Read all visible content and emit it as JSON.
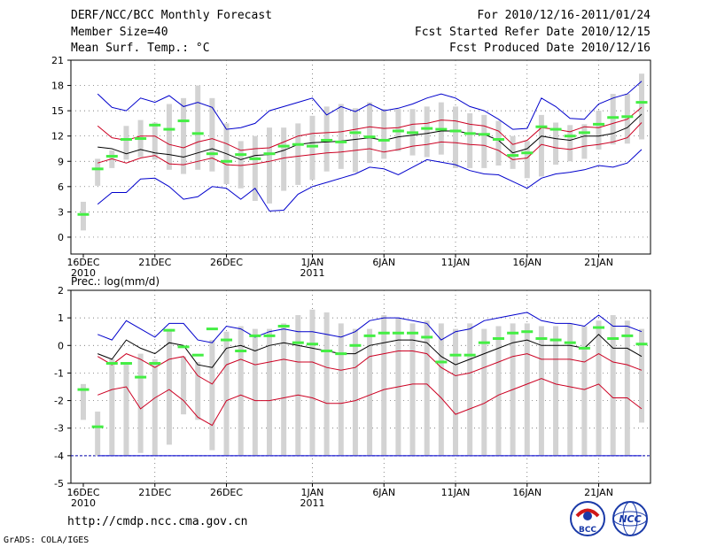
{
  "header": {
    "title": "DERF/NCC/BCC Monthly Forecast",
    "member_size": "Member Size=40",
    "variable": "Mean Surf. Temp.: °C",
    "period": "For 2010/12/16-2011/01/24",
    "started": "Fcst Started Refer Date 2010/12/15",
    "produced": "Fcst Produced Date 2010/12/16"
  },
  "footer": {
    "url": "http://cmdp.ncc.cma.gov.cn",
    "credit": "GrADS: COLA/IGES",
    "logo_bcc": "BCC",
    "logo_ncc": "NCC"
  },
  "colors": {
    "box": "#d3d3d3",
    "median": "#44ee44",
    "outer": "#0000cc",
    "inner": "#cc0022",
    "mean": "#000000"
  },
  "chart_data": [
    {
      "type": "box",
      "title": "Mean Surf. Temp.: °C",
      "ylim": [
        -2,
        21
      ],
      "yticks": [
        0,
        3,
        6,
        9,
        12,
        15,
        18,
        21
      ],
      "xtick_labels": [
        "16DEC",
        "21DEC",
        "26DEC",
        "1JAN",
        "6JAN",
        "11JAN",
        "16JAN",
        "21JAN"
      ],
      "xtick_years": [
        "2010",
        "",
        "",
        "2011",
        "",
        "",
        "",
        ""
      ],
      "xtick_days": [
        0,
        5,
        10,
        16,
        21,
        26,
        31,
        36
      ],
      "days": 40,
      "box_low": [
        0.8,
        6.1,
        8.2,
        9.2,
        9.5,
        9.2,
        8.0,
        7.5,
        8.0,
        7.8,
        6.3,
        5.8,
        4.3,
        4.0,
        5.5,
        6.2,
        6.8,
        7.8,
        8.1,
        7.7,
        8.8,
        9.3,
        10.2,
        9.7,
        9.5,
        9.8,
        8.2,
        8.2,
        8.2,
        8.5,
        8.1,
        7.0,
        7.2,
        8.6,
        9.0,
        9.3,
        10.4,
        11.0,
        11.1,
        11.6
      ],
      "box_high": [
        4.2,
        9.3,
        10.3,
        13.2,
        13.9,
        13.6,
        15.8,
        16.5,
        18.0,
        16.5,
        13.5,
        11.4,
        12.0,
        13.0,
        13.0,
        13.5,
        14.4,
        15.5,
        15.8,
        15.3,
        16.0,
        15.2,
        15.2,
        15.2,
        15.5,
        16.0,
        15.5,
        14.7,
        14.5,
        13.8,
        12.0,
        11.4,
        14.5,
        13.6,
        13.3,
        13.4,
        15.0,
        17.0,
        17.0,
        19.4
      ],
      "median": [
        2.7,
        8.1,
        9.6,
        11.6,
        11.7,
        13.3,
        12.8,
        13.8,
        12.3,
        9.9,
        9.0,
        9.8,
        9.3,
        9.9,
        10.8,
        11.0,
        10.8,
        11.5,
        11.3,
        12.4,
        11.9,
        11.5,
        12.6,
        12.4,
        12.9,
        12.8,
        12.6,
        12.3,
        12.2,
        11.6,
        9.7,
        10.0,
        13.1,
        12.8,
        12.0,
        12.4,
        13.4,
        14.2,
        14.3,
        16.0
      ],
      "mean": [
        null,
        10.7,
        10.5,
        9.9,
        10.4,
        10.0,
        9.8,
        9.5,
        10.0,
        10.5,
        9.9,
        9.2,
        9.7,
        9.8,
        10.3,
        11.0,
        11.2,
        11.3,
        11.4,
        11.6,
        11.8,
        11.5,
        11.9,
        12.1,
        12.3,
        12.6,
        12.6,
        12.3,
        12.2,
        11.5,
        10.0,
        10.5,
        12.0,
        11.7,
        11.5,
        12.0,
        12.0,
        12.3,
        13.0,
        14.6
      ],
      "inner_upper": [
        null,
        13.2,
        11.8,
        11.5,
        12.0,
        12.0,
        11.0,
        10.6,
        11.3,
        11.7,
        11.1,
        10.3,
        10.5,
        10.6,
        11.3,
        12.0,
        12.3,
        12.4,
        12.5,
        12.8,
        13.1,
        12.9,
        13.0,
        13.4,
        13.5,
        13.9,
        13.8,
        13.4,
        13.2,
        12.6,
        11.0,
        11.5,
        13.0,
        12.8,
        12.5,
        13.1,
        13.0,
        13.5,
        14.0,
        15.4
      ],
      "inner_lower": [
        null,
        8.8,
        9.3,
        8.8,
        9.4,
        9.7,
        8.7,
        8.6,
        9.0,
        9.4,
        8.6,
        8.5,
        8.7,
        9.0,
        9.4,
        9.6,
        9.8,
        10.0,
        10.1,
        10.3,
        10.5,
        10.1,
        10.4,
        10.8,
        11.0,
        11.3,
        11.2,
        11.0,
        10.9,
        10.3,
        9.2,
        9.4,
        11.0,
        10.6,
        10.4,
        10.8,
        11.0,
        11.3,
        11.8,
        13.6
      ],
      "outer_upper": [
        null,
        17.0,
        15.4,
        15.0,
        16.5,
        16.0,
        16.8,
        15.5,
        16.0,
        15.4,
        12.8,
        13.0,
        13.5,
        15.0,
        15.5,
        16.0,
        16.5,
        14.5,
        15.5,
        14.9,
        15.8,
        15.0,
        15.3,
        15.8,
        16.5,
        17.0,
        16.5,
        15.5,
        15.0,
        14.0,
        12.8,
        12.9,
        16.5,
        15.5,
        14.1,
        14.0,
        15.8,
        16.5,
        17.0,
        18.5
      ],
      "outer_lower": [
        null,
        3.9,
        5.3,
        5.3,
        6.9,
        7.0,
        6.0,
        4.5,
        4.8,
        6.0,
        5.8,
        4.5,
        5.8,
        3.1,
        3.2,
        5.1,
        6.0,
        6.5,
        7.0,
        7.5,
        8.3,
        8.1,
        7.4,
        8.3,
        9.2,
        8.9,
        8.6,
        7.9,
        7.5,
        7.4,
        6.6,
        5.8,
        7.0,
        7.5,
        7.7,
        8.0,
        8.5,
        8.3,
        8.8,
        10.4
      ]
    },
    {
      "type": "box",
      "title": "Prec.: log(mm/d)",
      "ylim": [
        -5,
        2
      ],
      "yticks": [
        -5,
        -4,
        -3,
        -2,
        -1,
        0,
        1,
        2
      ],
      "xtick_labels": [
        "16DEC",
        "21DEC",
        "26DEC",
        "1JAN",
        "6JAN",
        "11JAN",
        "16JAN",
        "21JAN"
      ],
      "xtick_years": [
        "2010",
        "",
        "",
        "2011",
        "",
        "",
        "",
        ""
      ],
      "xtick_days": [
        0,
        5,
        10,
        16,
        21,
        26,
        31,
        36
      ],
      "days": 40,
      "baseline": -4,
      "box_low": [
        -2.7,
        -4,
        -4,
        -4,
        -3.9,
        -4,
        -3.6,
        -2.5,
        -2.7,
        -3.8,
        -4,
        -4,
        -4,
        -4,
        -4,
        -4,
        -4,
        -4,
        -4,
        -4,
        -4,
        -4,
        -4,
        -4,
        -4,
        -4,
        -4,
        -4,
        -4,
        -4,
        -4,
        -4,
        -4,
        -4,
        -4,
        -4,
        -4,
        -4,
        -4,
        -2.8
      ],
      "box_high": [
        -1.4,
        -2.4,
        -0.5,
        -0.7,
        -0.3,
        -0.5,
        0.6,
        -0.4,
        -0.6,
        0.2,
        0.5,
        0.7,
        0.6,
        0.6,
        0.8,
        1.1,
        1.3,
        1.2,
        0.8,
        0.6,
        0.6,
        1.1,
        1.0,
        0.8,
        0.9,
        0.8,
        0.6,
        0.8,
        0.6,
        0.7,
        0.8,
        0.8,
        0.7,
        0.7,
        0.8,
        0.7,
        0.9,
        1.1,
        0.9,
        0.6
      ],
      "median": [
        -1.6,
        -2.95,
        -0.65,
        -0.65,
        -1.15,
        -0.65,
        0.55,
        -0.05,
        -0.35,
        0.6,
        0.2,
        -0.2,
        0.35,
        0.35,
        0.7,
        0.1,
        0.05,
        -0.2,
        -0.3,
        0.0,
        0.35,
        0.45,
        0.45,
        0.45,
        0.3,
        -0.6,
        -0.35,
        -0.35,
        0.1,
        0.25,
        0.45,
        0.5,
        0.25,
        0.2,
        0.1,
        -0.1,
        0.65,
        0.25,
        0.35,
        0.05
      ],
      "mean": [
        null,
        -0.3,
        -0.5,
        0.2,
        -0.1,
        -0.3,
        0.1,
        0.0,
        -0.7,
        -0.8,
        -0.1,
        0.0,
        -0.2,
        0.0,
        0.1,
        0.0,
        -0.1,
        -0.2,
        -0.3,
        -0.3,
        0.0,
        0.1,
        0.2,
        0.2,
        0.1,
        -0.4,
        -0.7,
        -0.5,
        -0.3,
        -0.1,
        0.1,
        0.2,
        0.0,
        0.0,
        0.0,
        -0.1,
        0.4,
        -0.1,
        -0.1,
        -0.4
      ],
      "inner_upper": [
        null,
        -0.4,
        -0.7,
        -0.3,
        -0.5,
        -0.8,
        -0.5,
        -0.4,
        -1.1,
        -1.4,
        -0.7,
        -0.5,
        -0.7,
        -0.6,
        -0.5,
        -0.6,
        -0.6,
        -0.8,
        -0.9,
        -0.8,
        -0.4,
        -0.3,
        -0.2,
        -0.2,
        -0.3,
        -0.8,
        -1.1,
        -1.0,
        -0.8,
        -0.6,
        -0.4,
        -0.3,
        -0.5,
        -0.5,
        -0.5,
        -0.6,
        -0.3,
        -0.6,
        -0.7,
        -0.9
      ],
      "inner_lower": [
        null,
        -1.8,
        -1.6,
        -1.5,
        -2.3,
        -1.9,
        -1.6,
        -2.0,
        -2.6,
        -2.9,
        -2.0,
        -1.8,
        -2.0,
        -2.0,
        -1.9,
        -1.8,
        -1.9,
        -2.1,
        -2.1,
        -2.0,
        -1.8,
        -1.6,
        -1.5,
        -1.4,
        -1.4,
        -1.9,
        -2.5,
        -2.3,
        -2.1,
        -1.8,
        -1.6,
        -1.4,
        -1.2,
        -1.4,
        -1.5,
        -1.6,
        -1.4,
        -1.9,
        -1.9,
        -2.3
      ],
      "outer_upper": [
        null,
        0.4,
        0.2,
        0.9,
        0.6,
        0.3,
        0.8,
        0.8,
        0.2,
        0.1,
        0.7,
        0.6,
        0.3,
        0.5,
        0.6,
        0.5,
        0.5,
        0.4,
        0.3,
        0.5,
        0.9,
        1.0,
        1.0,
        0.9,
        0.8,
        0.2,
        0.5,
        0.6,
        0.9,
        1.0,
        1.1,
        1.2,
        0.9,
        0.8,
        0.8,
        0.7,
        1.1,
        0.7,
        0.7,
        0.5
      ],
      "outer_lower": [
        null,
        -4,
        -4,
        -4,
        -4,
        -4,
        -4,
        -4,
        -4,
        -4,
        -4,
        -4,
        -4,
        -4,
        -4,
        -4,
        -4,
        -4,
        -4,
        -4,
        -4,
        -4,
        -4,
        -4,
        -4,
        -4,
        -4,
        -4,
        -4,
        -4,
        -4,
        -4,
        -4,
        -4,
        -4,
        -4,
        -4,
        -4,
        -4,
        -4
      ]
    }
  ]
}
